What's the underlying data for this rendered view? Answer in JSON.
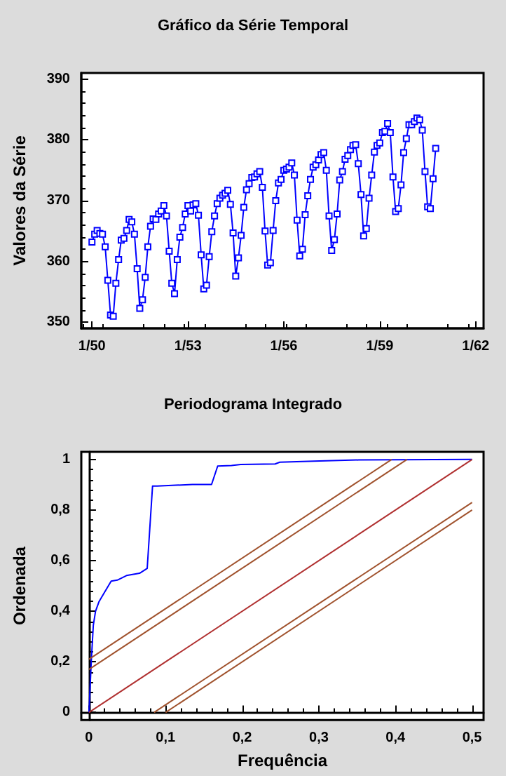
{
  "chart_data": [
    {
      "type": "line",
      "title": "Gráfico da Série Temporal",
      "ylabel": "Valores da Série",
      "marker": "square",
      "x": [
        "1950-01",
        "1950-02",
        "1950-03",
        "1950-04",
        "1950-05",
        "1950-06",
        "1950-07",
        "1950-08",
        "1950-09",
        "1950-10",
        "1950-11",
        "1950-12",
        "1951-01",
        "1951-02",
        "1951-03",
        "1951-04",
        "1951-05",
        "1951-06",
        "1951-07",
        "1951-08",
        "1951-09",
        "1951-10",
        "1951-11",
        "1951-12",
        "1952-01",
        "1952-02",
        "1952-03",
        "1952-04",
        "1952-05",
        "1952-06",
        "1952-07",
        "1952-08",
        "1952-09",
        "1952-10",
        "1952-11",
        "1952-12",
        "1953-01",
        "1953-02",
        "1953-03",
        "1953-04",
        "1953-05",
        "1953-06",
        "1953-07",
        "1953-08",
        "1953-09",
        "1953-10",
        "1953-11",
        "1953-12",
        "1954-01",
        "1954-02",
        "1954-03",
        "1954-04",
        "1954-05",
        "1954-06",
        "1954-07",
        "1954-08",
        "1954-09",
        "1954-10",
        "1954-11",
        "1954-12",
        "1955-01",
        "1955-02",
        "1955-03",
        "1955-04",
        "1955-05",
        "1955-06",
        "1955-07",
        "1955-08",
        "1955-09",
        "1955-10",
        "1955-11",
        "1955-12",
        "1956-01",
        "1956-02",
        "1956-03",
        "1956-04",
        "1956-05",
        "1956-06",
        "1956-07",
        "1956-08",
        "1956-09",
        "1956-10",
        "1956-11",
        "1956-12",
        "1957-01",
        "1957-02",
        "1957-03",
        "1957-04",
        "1957-05",
        "1957-06",
        "1957-07",
        "1957-08",
        "1957-09",
        "1957-10",
        "1957-11",
        "1957-12",
        "1958-01",
        "1958-02",
        "1958-03",
        "1958-04",
        "1958-05",
        "1958-06",
        "1958-07",
        "1958-08",
        "1958-09",
        "1958-10",
        "1958-11",
        "1958-12",
        "1959-01",
        "1959-02",
        "1959-03",
        "1959-04",
        "1959-05",
        "1959-06",
        "1959-07",
        "1959-08",
        "1959-09",
        "1959-10",
        "1959-11",
        "1959-12",
        "1960-01",
        "1960-02",
        "1960-03",
        "1960-04",
        "1960-05",
        "1960-06",
        "1960-07",
        "1960-08",
        "1960-09",
        "1960-10"
      ],
      "series": [
        {
          "color": "#0000ff",
          "values": [
            363.2,
            364.5,
            365.1,
            364.6,
            364.5,
            362.4,
            356.9,
            351.2,
            351.0,
            356.4,
            360.3,
            363.5,
            363.8,
            365.1,
            366.9,
            366.5,
            364.5,
            358.8,
            352.3,
            353.7,
            357.4,
            362.4,
            365.8,
            367.0,
            366.9,
            367.8,
            368.3,
            369.2,
            367.5,
            361.7,
            356.4,
            354.7,
            360.3,
            364.0,
            365.6,
            367.8,
            369.2,
            368.3,
            369.3,
            369.5,
            367.6,
            361.1,
            355.5,
            356.1,
            360.8,
            364.9,
            367.5,
            369.5,
            370.4,
            370.9,
            371.2,
            371.7,
            369.4,
            364.7,
            357.6,
            360.6,
            364.3,
            368.9,
            371.8,
            372.8,
            373.8,
            373.9,
            374.4,
            374.8,
            372.2,
            365.0,
            359.4,
            359.8,
            365.1,
            370.0,
            372.9,
            373.5,
            375.0,
            375.2,
            375.5,
            376.2,
            374.2,
            366.8,
            360.9,
            362.0,
            367.7,
            370.8,
            373.5,
            375.5,
            375.9,
            376.7,
            377.6,
            377.9,
            375.0,
            367.5,
            361.8,
            363.6,
            367.8,
            373.4,
            374.8,
            376.8,
            377.4,
            378.4,
            379.1,
            379.2,
            376.1,
            371.0,
            364.2,
            365.4,
            370.4,
            374.2,
            378.0,
            379.1,
            379.5,
            381.2,
            381.4,
            382.7,
            381.2,
            373.9,
            368.2,
            368.7,
            372.6,
            377.9,
            380.2,
            382.5,
            382.5,
            383.0,
            383.6,
            383.3,
            381.6,
            374.8,
            369.0,
            368.7,
            373.6,
            378.6
          ]
        }
      ],
      "xlim": [
        "1949-09",
        "1962-04"
      ],
      "xticks": [
        {
          "value": "1950-01",
          "label": "1/50"
        },
        {
          "value": "1953-01",
          "label": "1/53"
        },
        {
          "value": "1956-01",
          "label": "1/56"
        },
        {
          "value": "1959-01",
          "label": "1/59"
        },
        {
          "value": "1962-01",
          "label": "1/62"
        }
      ],
      "ylim": [
        349,
        391
      ],
      "yticks": [
        350,
        360,
        370,
        380,
        390
      ]
    },
    {
      "type": "line",
      "title": "Periodograma Integrado",
      "xlabel": "Frequência",
      "ylabel": "Ordenada",
      "marker": "none",
      "series": [
        {
          "color": "#0000ff",
          "x": [
            0,
            0.003,
            0.0057,
            0.0086,
            0.013,
            0.02,
            0.029,
            0.037,
            0.049,
            0.066,
            0.076,
            0.083,
            0.089,
            0.135,
            0.16,
            0.168,
            0.186,
            0.198,
            0.243,
            0.249,
            0.301,
            0.352,
            0.5
          ],
          "values": [
            0,
            0.2,
            0.345,
            0.4,
            0.437,
            0.473,
            0.519,
            0.523,
            0.541,
            0.55,
            0.569,
            0.895,
            0.895,
            0.901,
            0.901,
            0.974,
            0.976,
            0.98,
            0.982,
            0.989,
            0.994,
            0.998,
            1
          ]
        },
        {
          "color": "#a0522d",
          "x": [
            0,
            0.395
          ],
          "values": [
            0.21,
            1
          ]
        },
        {
          "color": "#a0522d",
          "x": [
            0,
            0.415
          ],
          "values": [
            0.17,
            1
          ]
        },
        {
          "color": "#b03030",
          "x": [
            0,
            0.5
          ],
          "values": [
            0,
            1
          ]
        },
        {
          "color": "#a0522d",
          "x": [
            0.085,
            0.5
          ],
          "values": [
            0,
            0.83
          ]
        },
        {
          "color": "#a0522d",
          "x": [
            0.1,
            0.5
          ],
          "values": [
            0,
            0.8
          ]
        }
      ],
      "xlim": [
        -0.01,
        0.515
      ],
      "xticks": [
        0,
        {
          "value": 0.1,
          "label": "0,1"
        },
        {
          "value": 0.2,
          "label": "0,2"
        },
        {
          "value": 0.3,
          "label": "0,3"
        },
        {
          "value": 0.4,
          "label": "0,4"
        },
        {
          "value": 0.5,
          "label": "0,5"
        }
      ],
      "ylim": [
        -0.03,
        1.03
      ],
      "yticks": [
        0,
        {
          "value": 0.2,
          "label": "0,2"
        },
        {
          "value": 0.4,
          "label": "0,4"
        },
        {
          "value": 0.6,
          "label": "0,6"
        },
        {
          "value": 0.8,
          "label": "0,8"
        },
        1
      ]
    }
  ]
}
